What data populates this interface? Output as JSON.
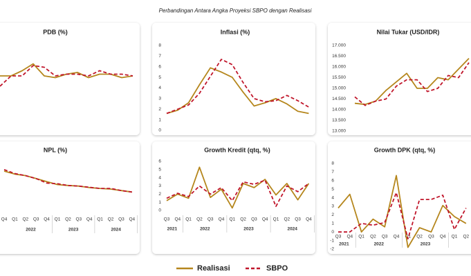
{
  "title": "Perbandingan Antara Angka Proyeksi SBPO dengan Realisasi",
  "chart_data": [
    {
      "type": "line",
      "title": "PDB (%)",
      "ylim": [
        2,
        7
      ],
      "series": [
        {
          "name": "Realisasi",
          "color": "#b5861c",
          "line_style": "solid",
          "values": [
            5.0,
            5.0,
            5.3,
            5.7,
            5.0,
            4.9,
            5.1,
            5.2,
            4.9,
            5.1,
            5.1,
            4.9,
            5.0
          ]
        },
        {
          "name": "SBPO",
          "color": "#c0152a",
          "line_style": "dashed",
          "values": [
            4.4,
            5.0,
            5.0,
            5.6,
            5.5,
            5.0,
            5.1,
            5.1,
            5.0,
            5.3,
            5.1,
            5.1,
            5.0
          ]
        }
      ]
    },
    {
      "type": "line",
      "title": "Inflasi (%)",
      "ylim": [
        0,
        8
      ],
      "yticks": [
        0,
        1,
        2,
        3,
        4,
        5,
        6,
        7,
        8
      ],
      "series": [
        {
          "name": "Realisasi",
          "color": "#b5861c",
          "line_style": "solid",
          "values": [
            1.6,
            1.9,
            2.6,
            4.3,
            5.9,
            5.5,
            5.0,
            3.6,
            2.3,
            2.6,
            3.0,
            2.5,
            1.8,
            1.6
          ]
        },
        {
          "name": "SBPO",
          "color": "#c0152a",
          "line_style": "dashed",
          "values": [
            1.6,
            2.0,
            2.4,
            3.5,
            5.1,
            6.7,
            6.2,
            4.5,
            3.0,
            2.7,
            2.8,
            3.3,
            2.8,
            2.2
          ]
        }
      ]
    },
    {
      "type": "line",
      "title": "Nilai Tukar (USD/IDR)",
      "ylim": [
        13000,
        17000
      ],
      "yticks": [
        {
          "value": 13000,
          "label": "13.000"
        },
        {
          "value": 13500,
          "label": "13.500"
        },
        {
          "value": 14000,
          "label": "14.000"
        },
        {
          "value": 14500,
          "label": "14.500"
        },
        {
          "value": 15000,
          "label": "15.000"
        },
        {
          "value": 15500,
          "label": "15.500"
        },
        {
          "value": 16000,
          "label": "16.000"
        },
        {
          "value": 16500,
          "label": "16.500"
        },
        {
          "value": 17000,
          "label": "17.000"
        }
      ],
      "series": [
        {
          "name": "Realisasi",
          "color": "#b5861c",
          "line_style": "solid",
          "values": [
            14300,
            14250,
            14400,
            14900,
            15300,
            15700,
            15000,
            15000,
            15500,
            15400,
            15900,
            16400
          ]
        },
        {
          "name": "SBPO",
          "color": "#c0152a",
          "line_style": "dashed",
          "values": [
            14600,
            14200,
            14400,
            14500,
            15100,
            15400,
            15400,
            14850,
            15000,
            15600,
            15500,
            16200
          ]
        }
      ]
    },
    {
      "type": "line",
      "title": "NPL (%)",
      "ylim": [
        2,
        3.5
      ],
      "categories": [
        "Q4",
        "Q1",
        "Q2",
        "Q3",
        "Q4",
        "Q1",
        "Q2",
        "Q3",
        "Q4",
        "Q1",
        "Q2",
        "Q3",
        "Q4"
      ],
      "x_groups": [
        {
          "label": "2022",
          "from": 1,
          "to": 4
        },
        {
          "label": "2023",
          "from": 5,
          "to": 8
        },
        {
          "label": "2024",
          "from": 9,
          "to": 12
        }
      ],
      "series": [
        {
          "name": "Realisasi",
          "color": "#b5861c",
          "line_style": "solid",
          "values": [
            3.2,
            3.1,
            3.05,
            2.95,
            2.85,
            2.75,
            2.72,
            2.7,
            2.65,
            2.62,
            2.6,
            2.55,
            2.5
          ]
        },
        {
          "name": "SBPO",
          "color": "#c0152a",
          "line_style": "dashed",
          "values": [
            3.25,
            3.12,
            3.05,
            2.95,
            2.8,
            2.78,
            2.72,
            2.7,
            2.66,
            2.62,
            2.62,
            2.55,
            2.5
          ]
        }
      ]
    },
    {
      "type": "line",
      "title": "Growth Kredit (qtq, %)",
      "ylim": [
        0,
        6
      ],
      "yticks": [
        0,
        1,
        2,
        3,
        4,
        5,
        6
      ],
      "categories": [
        "Q3",
        "Q4",
        "Q1",
        "Q2",
        "Q3",
        "Q4",
        "Q1",
        "Q2",
        "Q3",
        "Q4",
        "Q1",
        "Q2",
        "Q3",
        "Q4"
      ],
      "x_groups": [
        {
          "label": "2021",
          "from": 0,
          "to": 1
        },
        {
          "label": "2022",
          "from": 2,
          "to": 5
        },
        {
          "label": "2023",
          "from": 6,
          "to": 9
        },
        {
          "label": "2024",
          "from": 10,
          "to": 13
        }
      ],
      "series": [
        {
          "name": "Realisasi",
          "color": "#b5861c",
          "line_style": "solid",
          "values": [
            1.2,
            2.0,
            1.5,
            5.3,
            1.6,
            2.6,
            0.3,
            3.3,
            2.8,
            3.8,
            1.9,
            3.3,
            1.3,
            3.3
          ]
        },
        {
          "name": "SBPO",
          "color": "#c0152a",
          "line_style": "dashed",
          "values": [
            1.5,
            2.1,
            1.7,
            3.0,
            2.0,
            2.8,
            1.2,
            3.5,
            3.2,
            3.7,
            0.5,
            3.0,
            2.3,
            3.3
          ]
        }
      ]
    },
    {
      "type": "line",
      "title": "Growth DPK (qtq, %)",
      "ylim": [
        -2,
        8
      ],
      "yticks": [
        -2,
        -1,
        0,
        1,
        2,
        3,
        4,
        5,
        6,
        7,
        8
      ],
      "categories": [
        "Q3",
        "Q4",
        "Q1",
        "Q2",
        "Q3",
        "Q4",
        "Q1",
        "Q2",
        "Q3",
        "Q4",
        "Q1",
        "Q2"
      ],
      "x_groups": [
        {
          "label": "2021",
          "from": 0,
          "to": 1
        },
        {
          "label": "2022",
          "from": 2,
          "to": 5
        },
        {
          "label": "2023",
          "from": 6,
          "to": 9
        }
      ],
      "series": [
        {
          "name": "Realisasi",
          "color": "#b5861c",
          "line_style": "solid",
          "values": [
            2.8,
            4.4,
            0.0,
            1.5,
            0.6,
            6.6,
            -1.8,
            0.5,
            0.0,
            3.1,
            1.8,
            1.0
          ]
        },
        {
          "name": "SBPO",
          "color": "#c0152a",
          "line_style": "dashed",
          "values": [
            0.0,
            0.0,
            1.0,
            0.8,
            1.1,
            4.6,
            -0.8,
            3.8,
            3.8,
            4.3,
            0.3,
            2.8
          ]
        }
      ]
    }
  ]
}
